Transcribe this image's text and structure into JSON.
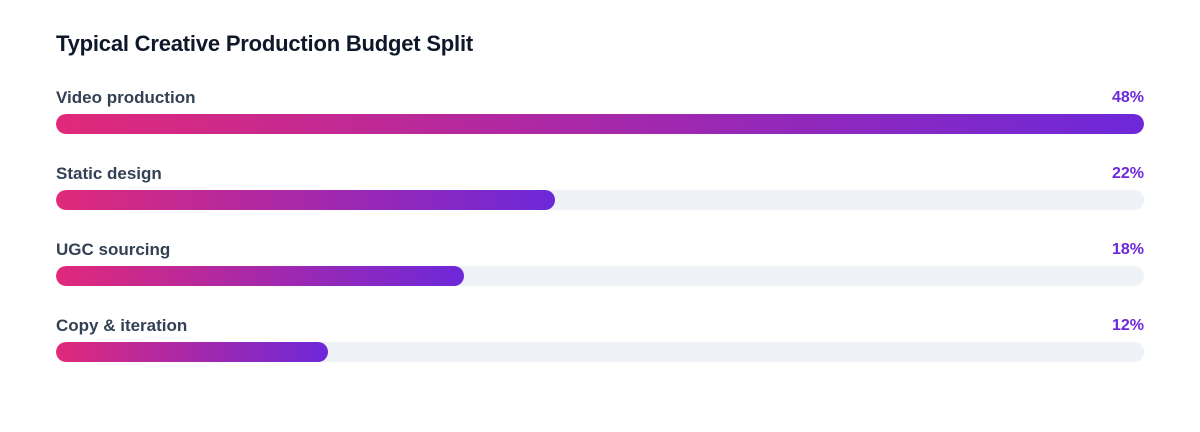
{
  "colors": {
    "gradient_start": "#e0297a",
    "gradient_end": "#6d28d9",
    "track": "#eef1f5",
    "value_text": "#6d28d9"
  },
  "chart_data": {
    "type": "bar",
    "orientation": "horizontal",
    "title": "Typical Creative Production Budget Split",
    "categories": [
      "Video production",
      "Static design",
      "UGC sourcing",
      "Copy & iteration"
    ],
    "values": [
      48,
      22,
      18,
      12
    ],
    "value_labels": [
      "48%",
      "22%",
      "18%",
      "12%"
    ],
    "unit": "%",
    "xlim": [
      0,
      48
    ],
    "grid": false,
    "legend": "none"
  }
}
